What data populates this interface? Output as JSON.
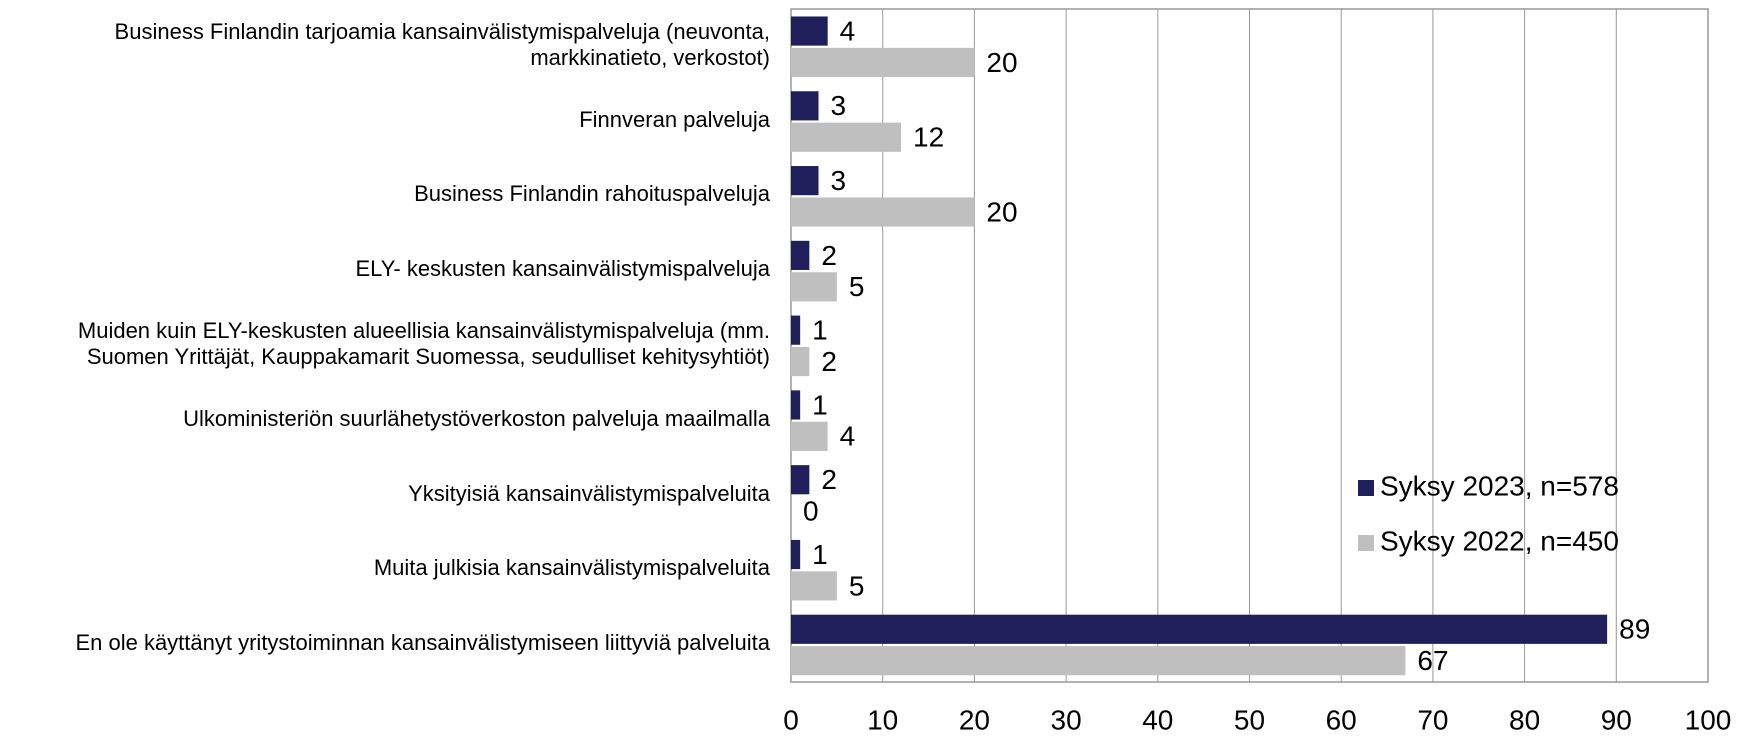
{
  "chart_data": {
    "type": "bar",
    "orientation": "horizontal",
    "categories": [
      "Business Finlandin tarjoamia kansainvälistymispalveluja (neuvonta, markkinatieto, verkostot)",
      "Finnveran palveluja",
      "Business Finlandin rahoituspalveluja",
      "ELY- keskusten kansainvälistymispalveluja",
      "Muiden kuin ELY-keskusten alueellisia kansainvälistymispalveluja (mm. Suomen Yrittäjät, Kauppakamarit Suomessa, seudulliset kehitysyhtiöt)",
      "Ulkoministeriön suurlähetystöverkoston palveluja maailmalla",
      "Yksityisiä kansainvälistymispalveluita",
      "Muita julkisia kansainvälistymispalveluita",
      "En ole käyttänyt yritystoiminnan kansainvälistymiseen liittyviä palveluita"
    ],
    "series": [
      {
        "name": "Syksy 2023, n=578",
        "color": "#1f1f5c",
        "values": [
          4,
          3,
          3,
          2,
          1,
          1,
          2,
          1,
          89
        ]
      },
      {
        "name": "Syksy 2022, n=450",
        "color": "#bfbfbf",
        "values": [
          20,
          12,
          20,
          5,
          2,
          4,
          0,
          5,
          67
        ]
      }
    ],
    "xlim": [
      0,
      100
    ],
    "xticks": [
      0,
      10,
      20,
      30,
      40,
      50,
      60,
      70,
      80,
      90,
      100
    ],
    "grid": true,
    "legend": "lower right"
  }
}
